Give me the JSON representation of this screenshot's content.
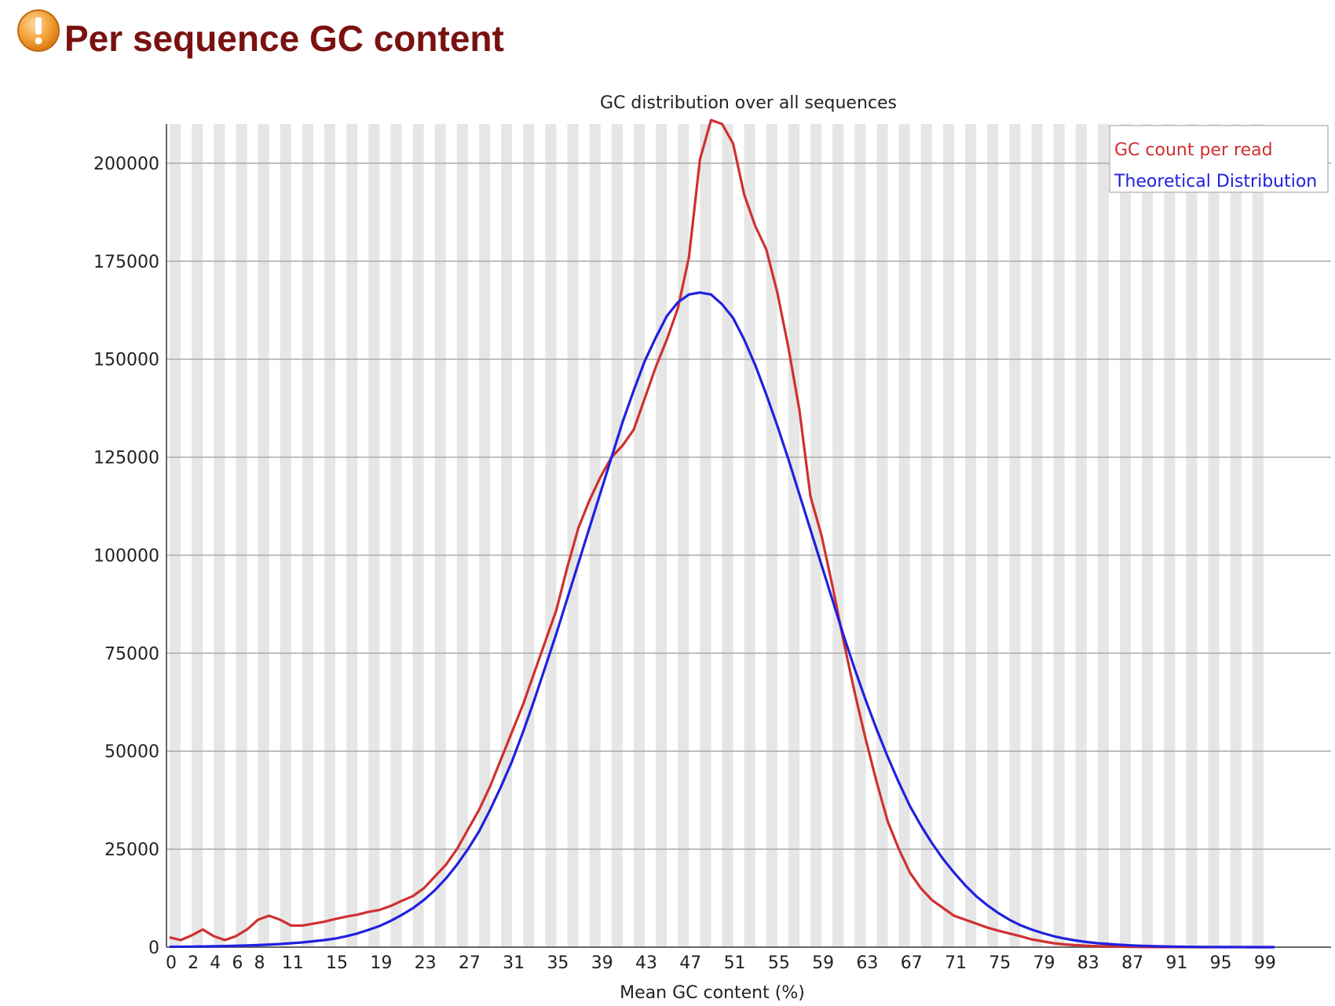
{
  "section": {
    "title": "Per sequence GC content",
    "status_icon": "warning-icon",
    "status_color": "#f0a030"
  },
  "chart_data": {
    "type": "line",
    "title": "GC distribution over all sequences",
    "xlabel": "Mean GC content (%)",
    "ylabel": "",
    "xlim": [
      0,
      100
    ],
    "ylim": [
      0,
      210000
    ],
    "x_ticks": [
      "0",
      "2",
      "4",
      "6",
      "8",
      "11",
      "15",
      "19",
      "23",
      "27",
      "31",
      "35",
      "39",
      "43",
      "47",
      "51",
      "55",
      "59",
      "63",
      "67",
      "71",
      "75",
      "79",
      "83",
      "87",
      "91",
      "95",
      "99"
    ],
    "y_ticks": [
      "0",
      "25000",
      "50000",
      "75000",
      "100000",
      "125000",
      "150000",
      "175000",
      "200000"
    ],
    "legend_position": "top-right",
    "grid": true,
    "colors": {
      "gc_count": "#d03030",
      "theoretical": "#2020e0",
      "stripe": "#e6e6e6",
      "grid": "#aaaaaa"
    },
    "series": [
      {
        "name": "GC count per read",
        "color": "#d03030",
        "x": [
          0,
          1,
          2,
          3,
          4,
          5,
          6,
          7,
          8,
          9,
          10,
          11,
          12,
          13,
          14,
          15,
          16,
          17,
          18,
          19,
          20,
          21,
          22,
          23,
          24,
          25,
          26,
          27,
          28,
          29,
          30,
          31,
          32,
          33,
          34,
          35,
          36,
          37,
          38,
          39,
          40,
          41,
          42,
          43,
          44,
          45,
          46,
          47,
          48,
          49,
          50,
          51,
          52,
          53,
          54,
          55,
          56,
          57,
          58,
          59,
          60,
          61,
          62,
          63,
          64,
          65,
          66,
          67,
          68,
          69,
          70,
          71,
          72,
          73,
          74,
          75,
          76,
          77,
          78,
          79,
          80,
          81,
          82,
          83,
          84,
          85,
          86,
          87,
          88,
          89,
          90,
          91,
          92,
          93,
          94,
          95,
          96,
          97,
          98,
          99,
          100
        ],
        "values": [
          2500,
          1800,
          3000,
          4500,
          2800,
          1800,
          2800,
          4500,
          7000,
          8000,
          7000,
          5500,
          5500,
          6000,
          6500,
          7200,
          7800,
          8300,
          9000,
          9500,
          10500,
          11800,
          13000,
          15000,
          18000,
          21000,
          25000,
          30000,
          35000,
          41000,
          48000,
          55000,
          62000,
          70000,
          78000,
          86000,
          97000,
          107000,
          114000,
          120000,
          125000,
          128000,
          132000,
          140000,
          148000,
          155000,
          163000,
          176000,
          201000,
          211000,
          210000,
          205000,
          192000,
          184000,
          178000,
          167000,
          153000,
          137000,
          115000,
          105000,
          92000,
          78000,
          65000,
          53000,
          42000,
          32000,
          25000,
          19000,
          15000,
          12000,
          10000,
          8000,
          7000,
          6000,
          5000,
          4200,
          3500,
          2800,
          2000,
          1500,
          1000,
          700,
          500,
          350,
          250,
          180,
          120,
          80,
          50,
          30,
          20,
          15,
          10,
          5,
          3,
          2,
          1,
          1,
          0,
          0,
          0
        ]
      },
      {
        "name": "Theoretical Distribution",
        "color": "#2020e0",
        "x": [
          0,
          1,
          2,
          3,
          4,
          5,
          6,
          7,
          8,
          9,
          10,
          11,
          12,
          13,
          14,
          15,
          16,
          17,
          18,
          19,
          20,
          21,
          22,
          23,
          24,
          25,
          26,
          27,
          28,
          29,
          30,
          31,
          32,
          33,
          34,
          35,
          36,
          37,
          38,
          39,
          40,
          41,
          42,
          43,
          44,
          45,
          46,
          47,
          48,
          49,
          50,
          51,
          52,
          53,
          54,
          55,
          56,
          57,
          58,
          59,
          60,
          61,
          62,
          63,
          64,
          65,
          66,
          67,
          68,
          69,
          70,
          71,
          72,
          73,
          74,
          75,
          76,
          77,
          78,
          79,
          80,
          81,
          82,
          83,
          84,
          85,
          86,
          87,
          88,
          89,
          90,
          91,
          92,
          93,
          94,
          95,
          96,
          97,
          98,
          99,
          100
        ],
        "values": [
          100,
          110,
          140,
          180,
          220,
          280,
          350,
          430,
          530,
          650,
          800,
          1000,
          1200,
          1500,
          1800,
          2200,
          2800,
          3500,
          4400,
          5400,
          6700,
          8200,
          9900,
          12000,
          14500,
          17500,
          21000,
          25000,
          29500,
          35000,
          41000,
          47500,
          55000,
          63000,
          71500,
          80000,
          89000,
          98000,
          107000,
          116000,
          125000,
          134000,
          142000,
          149500,
          155500,
          161000,
          164500,
          166500,
          167000,
          166500,
          164000,
          160500,
          155000,
          148500,
          141000,
          133000,
          124500,
          115500,
          106500,
          97500,
          88500,
          79500,
          71000,
          63000,
          55500,
          48500,
          42000,
          36000,
          31000,
          26500,
          22500,
          19000,
          15800,
          13000,
          10700,
          8700,
          7000,
          5600,
          4500,
          3600,
          2800,
          2200,
          1700,
          1300,
          1000,
          800,
          600,
          450,
          340,
          250,
          180,
          130,
          90,
          60,
          40,
          30,
          20,
          10,
          5,
          2,
          0
        ]
      }
    ]
  }
}
